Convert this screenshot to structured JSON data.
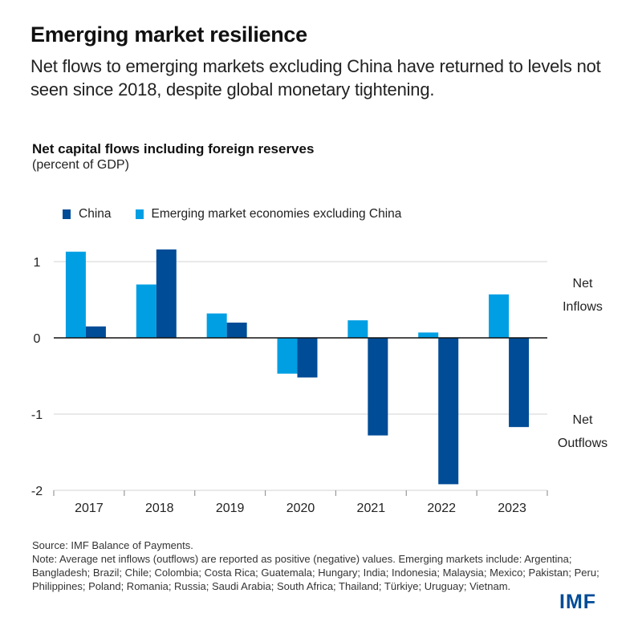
{
  "header": {
    "title": "Emerging market resilience",
    "subtitle": "Net flows to emerging markets excluding China have returned to levels not seen since 2018, despite global monetary tightening."
  },
  "footer": {
    "source": "Source: IMF Balance of Payments.",
    "note": "Note: Average net inflows (outflows) are reported as positive (negative) values. Emerging markets include: Argentina; Bangladesh; Brazil; Chile; Colombia; Costa Rica; Guatemala; Hungary; India; Indonesia; Malaysia; Mexico; Pakistan; Peru; Philippines; Poland; Romania; Russia; Saudi Arabia; South Africa; Thailand; Türkiye; Uruguay; Vietnam.",
    "logo": "IMF"
  },
  "colors": {
    "china": "#004c97",
    "em_ex_china": "#009fe3",
    "logo": "#004c97"
  },
  "chart_data": {
    "type": "bar",
    "title": "Net capital flows including foreign reserves",
    "subtitle": "(percent of GDP)",
    "xlabel": "",
    "ylabel": "",
    "categories": [
      "2017",
      "2018",
      "2019",
      "2020",
      "2021",
      "2022",
      "2023"
    ],
    "series": [
      {
        "name": "Emerging market economies excluding China",
        "values": [
          1.13,
          0.7,
          0.32,
          -0.47,
          0.23,
          0.07,
          0.57
        ]
      },
      {
        "name": "China",
        "values": [
          0.15,
          1.16,
          0.2,
          -0.52,
          -1.28,
          -1.92,
          -1.17
        ]
      }
    ],
    "legend": [
      "China",
      "Emerging market economies excluding China"
    ],
    "legend_position": "top-left",
    "ylim": [
      -2,
      1.2
    ],
    "yticks": [
      1,
      0,
      -1,
      -2
    ],
    "ytick_labels": [
      "1",
      "0",
      "-1",
      "-2"
    ],
    "grid": true,
    "annotations": [
      {
        "text": "Net Inflows",
        "lines": [
          "Net",
          "Inflows"
        ],
        "side": "right",
        "region": "positive"
      },
      {
        "text": "Net Outflows",
        "lines": [
          "Net",
          "Outflows"
        ],
        "side": "right",
        "region": "negative"
      }
    ]
  }
}
